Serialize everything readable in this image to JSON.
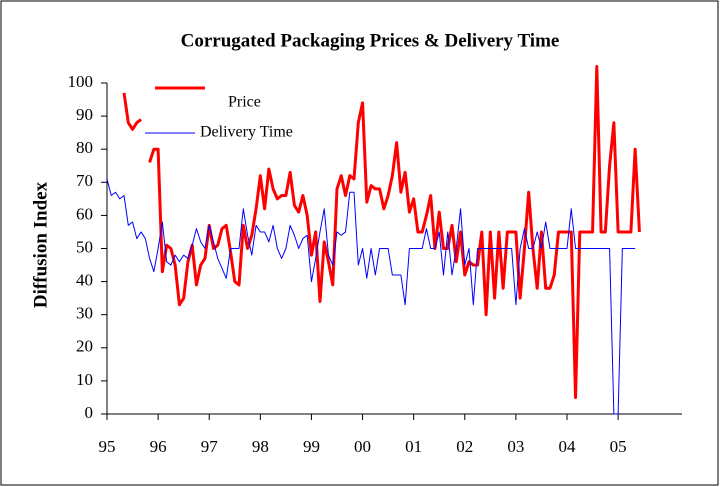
{
  "chart_data": {
    "type": "line",
    "title": "Corrugated Packaging Prices & Delivery Time",
    "y_label": "Diffusion Index",
    "x": [
      1995,
      1995.083,
      1995.167,
      1995.25,
      1995.333,
      1995.417,
      1995.5,
      1995.583,
      1995.667,
      1995.75,
      1995.833,
      1995.917,
      1996,
      1996.083,
      1996.167,
      1996.25,
      1996.333,
      1996.417,
      1996.5,
      1996.583,
      1996.667,
      1996.75,
      1996.833,
      1996.917,
      1997,
      1997.083,
      1997.167,
      1997.25,
      1997.333,
      1997.417,
      1997.5,
      1997.583,
      1997.667,
      1997.75,
      1997.833,
      1997.917,
      1998,
      1998.083,
      1998.167,
      1998.25,
      1998.333,
      1998.417,
      1998.5,
      1998.583,
      1998.667,
      1998.75,
      1998.833,
      1998.917,
      1999,
      1999.083,
      1999.167,
      1999.25,
      1999.333,
      1999.417,
      1999.5,
      1999.583,
      1999.667,
      1999.75,
      1999.833,
      1999.917,
      2000,
      2000.083,
      2000.167,
      2000.25,
      2000.333,
      2000.417,
      2000.5,
      2000.583,
      2000.667,
      2000.75,
      2000.833,
      2000.917,
      2001,
      2001.083,
      2001.167,
      2001.25,
      2001.333,
      2001.417,
      2001.5,
      2001.583,
      2001.667,
      2001.75,
      2001.833,
      2001.917,
      2002,
      2002.083,
      2002.167,
      2002.25,
      2002.333,
      2002.417,
      2002.5,
      2002.583,
      2002.667,
      2002.75,
      2002.833,
      2002.917,
      2003,
      2003.083,
      2003.167,
      2003.25,
      2003.333,
      2003.417,
      2003.5,
      2003.583,
      2003.667,
      2003.75,
      2003.833,
      2003.917,
      2004,
      2004.083,
      2004.167,
      2004.25,
      2004.333,
      2004.417,
      2004.5,
      2004.583,
      2004.667,
      2004.75,
      2004.833,
      2004.917,
      2005,
      2005.083,
      2005.167,
      2005.25,
      2005.333,
      2005.417
    ],
    "series": [
      {
        "name": "Price",
        "color": "#ff0000",
        "width": 3,
        "values": [
          null,
          null,
          null,
          null,
          97,
          88,
          86,
          88,
          89,
          null,
          76,
          80,
          80,
          43,
          51,
          50,
          45,
          33,
          35,
          46,
          51,
          39,
          45,
          47,
          57,
          50,
          51,
          56,
          57,
          49,
          40,
          39,
          57,
          50,
          54,
          62,
          72,
          62,
          74,
          68,
          65,
          66,
          66,
          73,
          63,
          61,
          66,
          60,
          48,
          55,
          34,
          52,
          46,
          39,
          68,
          72,
          66,
          72,
          71,
          88,
          94,
          64,
          69,
          68,
          68,
          62,
          66,
          72,
          82,
          67,
          73,
          61,
          65,
          55,
          55,
          60,
          66,
          50,
          61,
          50,
          50,
          57,
          46,
          55,
          42,
          46,
          45,
          45,
          55,
          30,
          55,
          35,
          55,
          38,
          55,
          55,
          55,
          35,
          50,
          67,
          50,
          38,
          55,
          38,
          38,
          42,
          55,
          55,
          55,
          55,
          5,
          55,
          55,
          55,
          55,
          105,
          55,
          55,
          75,
          88,
          55,
          55,
          55,
          55,
          80,
          55
        ]
      },
      {
        "name": "Delivery Time",
        "color": "#0000ff",
        "width": 1,
        "values": [
          71,
          66,
          67,
          65,
          66,
          57,
          58,
          53,
          55,
          53,
          47,
          43,
          50,
          58,
          46,
          45,
          48,
          46,
          48,
          47,
          51,
          56,
          52,
          50,
          57,
          52,
          47,
          44,
          41,
          50,
          50,
          50,
          62,
          54,
          48,
          57,
          55,
          55,
          52,
          57,
          50,
          47,
          50,
          57,
          54,
          50,
          53,
          54,
          40,
          47,
          55,
          62,
          48,
          45,
          55,
          54,
          55,
          67,
          67,
          45,
          50,
          41,
          50,
          42,
          50,
          50,
          50,
          42,
          42,
          42,
          33,
          50,
          50,
          50,
          50,
          56,
          50,
          50,
          55,
          42,
          55,
          42,
          50,
          62,
          45,
          50,
          33,
          50,
          50,
          50,
          50,
          50,
          50,
          50,
          50,
          50,
          33,
          50,
          56,
          50,
          50,
          55,
          50,
          58,
          50,
          50,
          50,
          50,
          50,
          62,
          50,
          50,
          50,
          50,
          50,
          50,
          50,
          50,
          50,
          0,
          0,
          50,
          50,
          50,
          50,
          null
        ]
      }
    ],
    "xlim": [
      1995,
      2006.25
    ],
    "xticks": [
      {
        "value": 1995,
        "label": "95"
      },
      {
        "value": 1996,
        "label": "96"
      },
      {
        "value": 1997,
        "label": "97"
      },
      {
        "value": 1998,
        "label": "98"
      },
      {
        "value": 1999,
        "label": "99"
      },
      {
        "value": 2000,
        "label": "00"
      },
      {
        "value": 2001,
        "label": "01"
      },
      {
        "value": 2002,
        "label": "02"
      },
      {
        "value": 2003,
        "label": "03"
      },
      {
        "value": 2004,
        "label": "04"
      },
      {
        "value": 2005,
        "label": "05"
      }
    ],
    "ylim": [
      0,
      105
    ],
    "yticks": [
      0,
      10,
      20,
      30,
      40,
      50,
      60,
      70,
      80,
      90,
      100
    ],
    "grid": false
  }
}
